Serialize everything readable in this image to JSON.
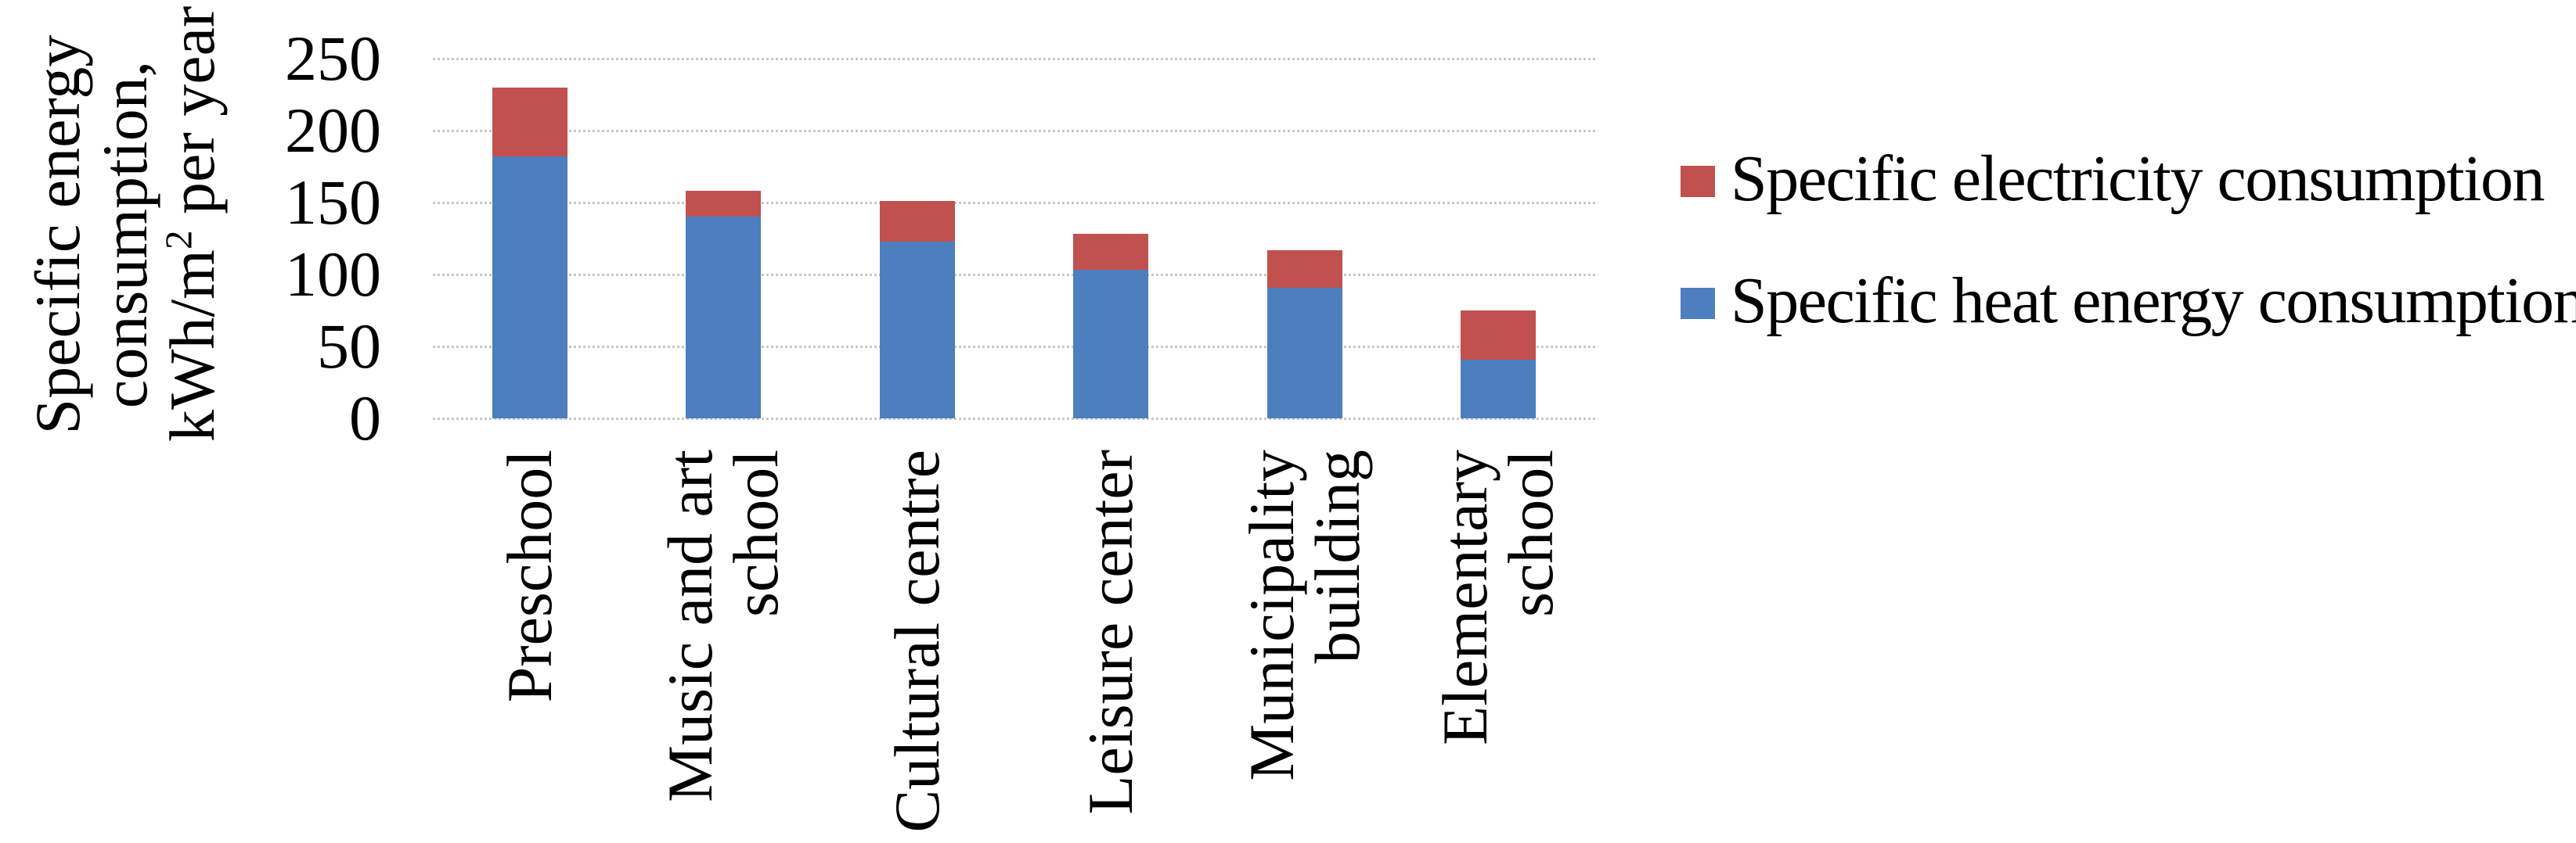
{
  "figure": {
    "background": "#ffffff",
    "text_color": "#000000"
  },
  "chart_data": {
    "type": "bar",
    "stacked": true,
    "title": "",
    "ylabel_lines": [
      "Specific energy",
      "consumption,"
    ],
    "ylabel_unit_line": {
      "pre": "kWh/m",
      "sup": "2",
      "post": " per year"
    },
    "categories": [
      "Preschool",
      "Music and art school",
      "Cultural centre",
      "Leisure center",
      "Municipality building",
      "Elementary school"
    ],
    "category_label_lines": [
      [
        "Preschool"
      ],
      [
        "Music and art",
        "school"
      ],
      [
        "Cultural centre"
      ],
      [
        "Leisure center"
      ],
      [
        "Municipality",
        "building"
      ],
      [
        "Elementary",
        "school"
      ]
    ],
    "series": [
      {
        "name": "Specific heat energy consumption",
        "color": "#4D7EBE",
        "values": [
          182,
          140,
          123,
          103,
          91,
          41
        ]
      },
      {
        "name": "Specific electricity consumption",
        "color": "#C0514F",
        "values": [
          48,
          18,
          28,
          25,
          26,
          34
        ]
      }
    ],
    "stack_totals": [
      230,
      158,
      151,
      128,
      117,
      75
    ],
    "yticks": [
      0,
      50,
      100,
      150,
      200,
      250
    ],
    "ylim": [
      0,
      250
    ],
    "grid": "horizontal-dotted",
    "gridline_color": "#c7c7c7",
    "legend_position": "right",
    "legend_order_top_to_bottom": [
      "Specific electricity consumption",
      "Specific heat energy consumption"
    ]
  }
}
